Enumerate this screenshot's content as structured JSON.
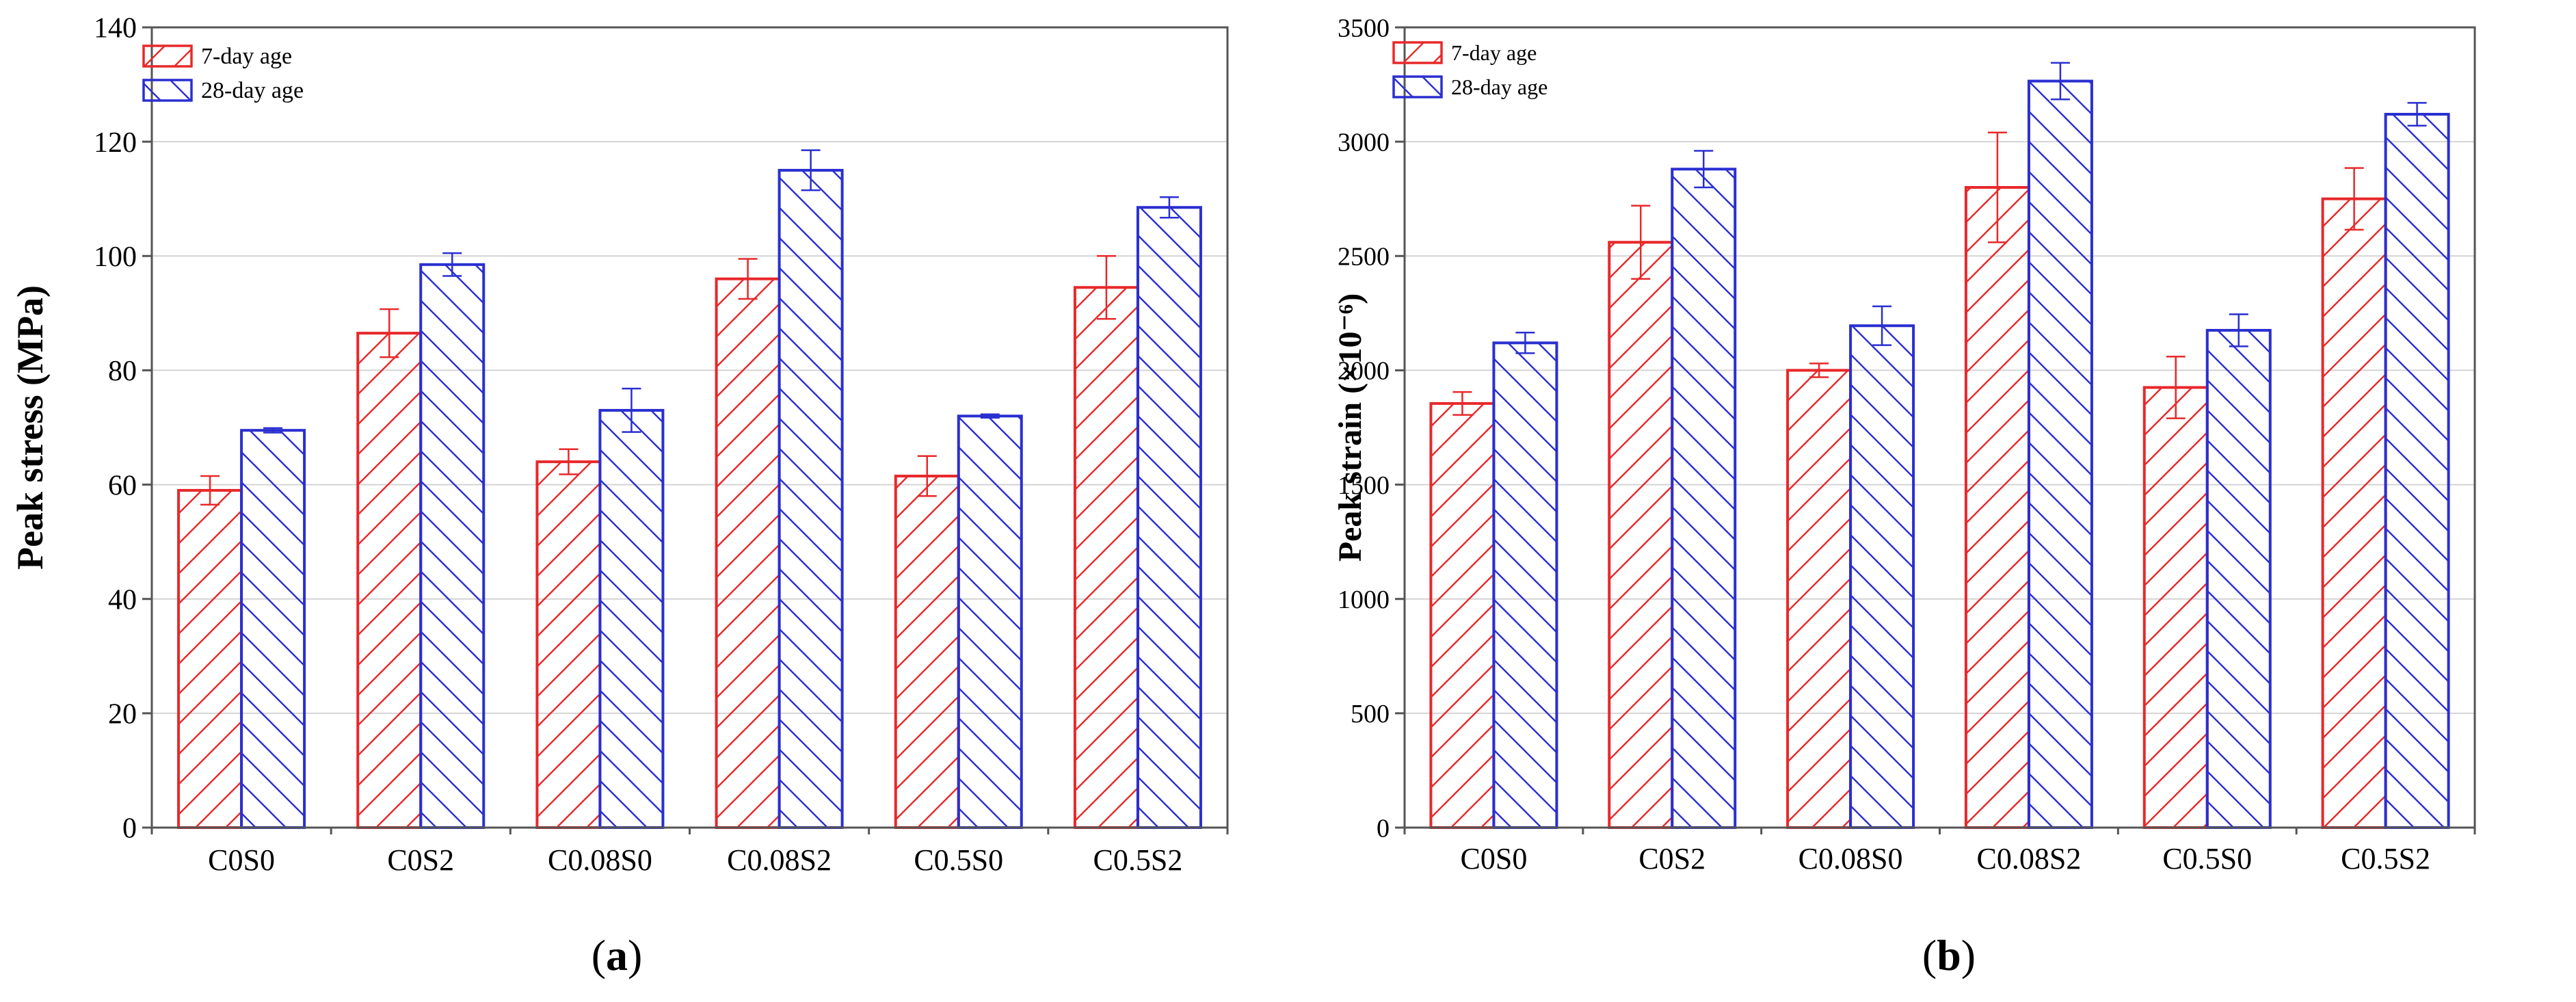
{
  "chart_data": [
    {
      "type": "bar",
      "panel_label": "(a)",
      "title": "",
      "xlabel": "",
      "ylabel": "Peak stress (MPa)",
      "categories": [
        "C0S0",
        "C0S2",
        "C0.08S0",
        "C0.08S2",
        "C0.5S0",
        "C0.5S2"
      ],
      "ylim": [
        0,
        140
      ],
      "yticks": [
        0,
        20,
        40,
        60,
        80,
        100,
        120,
        140
      ],
      "grid": true,
      "legend_position": "top-left",
      "series": [
        {
          "name": "7-day age",
          "color": "#e8282a",
          "hatch": "forward",
          "values": [
            59,
            86.5,
            64,
            96,
            61.5,
            94.5
          ],
          "errors": [
            2.5,
            4.2,
            2.2,
            3.5,
            3.5,
            5.5
          ]
        },
        {
          "name": "28-day age",
          "color": "#2a2fd0",
          "hatch": "back",
          "values": [
            69.5,
            98.5,
            73,
            115,
            72,
            108.5
          ],
          "errors": [
            0.4,
            2.0,
            3.8,
            3.5,
            0.3,
            1.8
          ]
        }
      ]
    },
    {
      "type": "bar",
      "panel_label": "(b)",
      "title": "",
      "xlabel": "",
      "ylabel": "Peak strain (×10⁻⁶)",
      "categories": [
        "C0S0",
        "C0S2",
        "C0.08S0",
        "C0.08S2",
        "C0.5S0",
        "C0.5S2"
      ],
      "ylim": [
        0,
        3500
      ],
      "yticks": [
        0,
        500,
        1000,
        1500,
        2000,
        2500,
        3000,
        3500
      ],
      "grid": true,
      "legend_position": "top-left",
      "series": [
        {
          "name": "7-day age",
          "color": "#e8282a",
          "hatch": "forward",
          "values": [
            1855,
            2560,
            2000,
            2800,
            1925,
            2750
          ],
          "errors": [
            50,
            160,
            30,
            240,
            135,
            135
          ]
        },
        {
          "name": "28-day age",
          "color": "#2a2fd0",
          "hatch": "back",
          "values": [
            2120,
            2880,
            2195,
            3265,
            2175,
            3120
          ],
          "errors": [
            45,
            80,
            85,
            80,
            70,
            50
          ]
        }
      ]
    }
  ]
}
